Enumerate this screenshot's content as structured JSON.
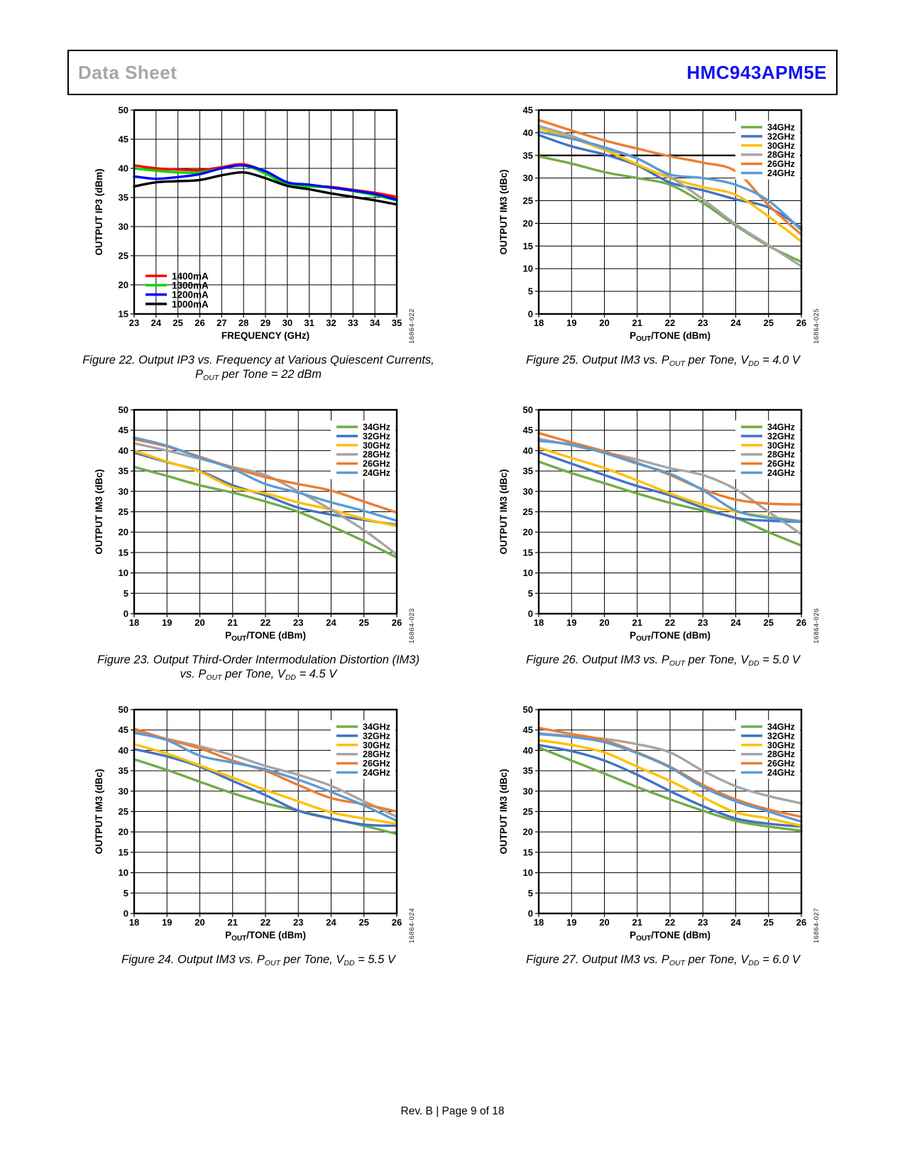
{
  "header": {
    "doc_type": "Data Sheet",
    "part_number": "HMC943APM5E"
  },
  "footer": {
    "text": "Rev. B | Page 9 of 18"
  },
  "colors": {
    "part_number_blue": "#1212f0",
    "doc_type_gray": "#a6a6a6",
    "series_green": "#70AD47",
    "series_blue": "#4472C4",
    "series_yellow": "#FFC000",
    "series_gray": "#A5A5A5",
    "series_orange": "#ED7D31",
    "series_lightblue": "#5B9BD5"
  },
  "chart_data": [
    {
      "figure": "Figure 22",
      "type": "line",
      "watermark": "16864-022",
      "ylabel": "OUTPUT IP3 (dBm)",
      "xlabel": "FREQUENCY (GHz)",
      "xlabel_parts": [
        {
          "t": "FREQUENCY (GHz)"
        }
      ],
      "xlim": [
        23,
        35
      ],
      "xstep": 1,
      "ylim": [
        15,
        50
      ],
      "ystep": 5,
      "grid": true,
      "legend_position": "bottom-left",
      "x": [
        23,
        24,
        25,
        26,
        27,
        28,
        29,
        30,
        31,
        32,
        33,
        34,
        35
      ],
      "series": [
        {
          "name": "1400mA",
          "color": "#ff0000",
          "values": [
            40.5,
            40.0,
            39.8,
            39.7,
            40.2,
            40.7,
            39.4,
            37.4,
            37.0,
            36.8,
            36.3,
            35.8,
            35.1
          ]
        },
        {
          "name": "1300mA",
          "color": "#00d500",
          "values": [
            40.0,
            39.6,
            39.3,
            39.3,
            40.0,
            40.5,
            39.1,
            37.2,
            36.9,
            36.7,
            36.1,
            35.4,
            34.5
          ]
        },
        {
          "name": "1200mA",
          "color": "#0000ff",
          "values": [
            38.6,
            38.2,
            38.5,
            39.0,
            40.0,
            40.5,
            39.5,
            37.6,
            37.2,
            36.7,
            36.2,
            35.6,
            34.6
          ]
        },
        {
          "name": "1000mA",
          "color": "#000000",
          "values": [
            36.9,
            37.6,
            37.8,
            38.0,
            38.8,
            39.3,
            38.3,
            37.0,
            36.4,
            35.7,
            35.1,
            34.5,
            33.8
          ]
        }
      ],
      "caption_lines": [
        [
          {
            "t": "Figure 22. Output IP3 vs. Frequency at Various Quiescent Currents,"
          }
        ],
        [
          {
            "t": "P"
          },
          {
            "t": "OUT",
            "sub": true
          },
          {
            "t": " per Tone = 22 dBm"
          }
        ]
      ]
    },
    {
      "figure": "Figure 25",
      "type": "line",
      "watermark": "16864-025",
      "ylabel": "OUTPUT IM3 (dBc)",
      "xlabel": "POUT/TONE (dBm)",
      "xlabel_parts": [
        {
          "t": "P"
        },
        {
          "t": "OUT",
          "sub": true
        },
        {
          "t": "/TONE (dBm)"
        }
      ],
      "xlim": [
        18,
        26
      ],
      "xstep": 1,
      "ylim": [
        0,
        45
      ],
      "ystep": 5,
      "grid": true,
      "ref_line_y": 35,
      "legend_position": "top-right",
      "x": [
        18,
        19,
        20,
        21,
        22,
        23,
        24,
        25,
        26
      ],
      "series": [
        {
          "name": "34GHz",
          "color": "#70AD47",
          "values": [
            34.8,
            33.2,
            31.3,
            30.0,
            28.5,
            24.5,
            19.5,
            15.0,
            11.5
          ]
        },
        {
          "name": "32GHz",
          "color": "#4472C4",
          "values": [
            39.5,
            37.0,
            35.2,
            32.8,
            29.0,
            27.3,
            25.3,
            23.5,
            19.0
          ]
        },
        {
          "name": "30GHz",
          "color": "#FFC000",
          "values": [
            41.0,
            38.8,
            36.2,
            33.0,
            30.0,
            28.0,
            26.3,
            21.5,
            16.0
          ]
        },
        {
          "name": "28GHz",
          "color": "#A5A5A5",
          "values": [
            41.5,
            39.3,
            36.5,
            34.3,
            30.3,
            25.3,
            19.8,
            15.2,
            10.5
          ]
        },
        {
          "name": "26GHz",
          "color": "#ED7D31",
          "values": [
            42.8,
            40.5,
            38.3,
            36.5,
            34.8,
            33.4,
            31.5,
            24.0,
            17.5
          ]
        },
        {
          "name": "24GHz",
          "color": "#5B9BD5",
          "values": [
            40.2,
            38.7,
            36.8,
            34.3,
            30.8,
            30.0,
            28.5,
            25.0,
            18.5
          ]
        }
      ],
      "caption_lines": [
        [
          {
            "t": "Figure 25. Output IM3 vs. P"
          },
          {
            "t": "OUT",
            "sub": true
          },
          {
            "t": " per Tone, V"
          },
          {
            "t": "DD",
            "sub": true
          },
          {
            "t": " = 4.0 V"
          }
        ]
      ]
    },
    {
      "figure": "Figure 23",
      "type": "line",
      "watermark": "16864-023",
      "ylabel": "OUTPUT IM3 (dBc)",
      "xlabel": "POUT/TONE (dBm)",
      "xlabel_parts": [
        {
          "t": "P"
        },
        {
          "t": "OUT",
          "sub": true
        },
        {
          "t": "/TONE (dBm)"
        }
      ],
      "xlim": [
        18,
        26
      ],
      "xstep": 1,
      "ylim": [
        0,
        50
      ],
      "ystep": 5,
      "grid": true,
      "legend_position": "top-right",
      "x": [
        18,
        19,
        20,
        21,
        22,
        23,
        24,
        25,
        26
      ],
      "series": [
        {
          "name": "34GHz",
          "color": "#70AD47",
          "values": [
            36.0,
            33.8,
            31.5,
            29.7,
            27.5,
            25.0,
            21.5,
            17.8,
            13.8
          ]
        },
        {
          "name": "32GHz",
          "color": "#4472C4",
          "values": [
            39.5,
            37.2,
            35.0,
            31.5,
            29.0,
            26.0,
            24.3,
            23.0,
            21.8
          ]
        },
        {
          "name": "30GHz",
          "color": "#FFC000",
          "values": [
            40.0,
            37.3,
            34.8,
            31.0,
            29.5,
            27.3,
            25.5,
            23.3,
            21.5
          ]
        },
        {
          "name": "28GHz",
          "color": "#A5A5A5",
          "values": [
            41.8,
            40.0,
            38.0,
            36.0,
            34.0,
            30.0,
            25.5,
            20.5,
            14.5
          ]
        },
        {
          "name": "26GHz",
          "color": "#ED7D31",
          "values": [
            42.8,
            41.0,
            38.5,
            35.8,
            33.5,
            31.8,
            30.2,
            27.5,
            24.8
          ]
        },
        {
          "name": "24GHz",
          "color": "#5B9BD5",
          "values": [
            43.2,
            41.2,
            38.3,
            35.5,
            31.8,
            29.7,
            27.3,
            25.2,
            22.8
          ]
        }
      ],
      "caption_lines": [
        [
          {
            "t": "Figure 23. Output Third-Order Intermodulation Distortion (IM3)"
          }
        ],
        [
          {
            "t": "vs. P"
          },
          {
            "t": "OUT",
            "sub": true
          },
          {
            "t": " per Tone, V"
          },
          {
            "t": "DD",
            "sub": true
          },
          {
            "t": " = 4.5 V"
          }
        ]
      ]
    },
    {
      "figure": "Figure 26",
      "type": "line",
      "watermark": "16864-026",
      "ylabel": "OUTPUT IM3 (dBc)",
      "xlabel": "POUT/TONE (dBm)",
      "xlabel_parts": [
        {
          "t": "P"
        },
        {
          "t": "OUT",
          "sub": true
        },
        {
          "t": "/TONE (dBm)"
        }
      ],
      "xlim": [
        18,
        26
      ],
      "xstep": 1,
      "ylim": [
        0,
        50
      ],
      "ystep": 5,
      "grid": true,
      "legend_position": "top-right",
      "x": [
        18,
        19,
        20,
        21,
        22,
        23,
        24,
        25,
        26
      ],
      "series": [
        {
          "name": "34GHz",
          "color": "#70AD47",
          "values": [
            37.3,
            34.5,
            32.0,
            29.5,
            27.2,
            25.3,
            23.5,
            20.0,
            16.7
          ]
        },
        {
          "name": "32GHz",
          "color": "#4472C4",
          "values": [
            39.6,
            36.8,
            34.0,
            31.3,
            29.0,
            26.0,
            23.5,
            22.8,
            22.6
          ]
        },
        {
          "name": "30GHz",
          "color": "#FFC000",
          "values": [
            40.7,
            38.2,
            35.7,
            32.7,
            29.5,
            26.8,
            25.0,
            23.8,
            22.7
          ]
        },
        {
          "name": "28GHz",
          "color": "#A5A5A5",
          "values": [
            42.9,
            41.3,
            39.6,
            37.8,
            35.7,
            34.0,
            30.5,
            25.0,
            19.5
          ]
        },
        {
          "name": "26GHz",
          "color": "#ED7D31",
          "values": [
            44.3,
            42.0,
            39.8,
            37.0,
            34.0,
            30.5,
            28.0,
            27.0,
            26.8
          ]
        },
        {
          "name": "24GHz",
          "color": "#5B9BD5",
          "values": [
            42.4,
            41.5,
            39.4,
            36.8,
            34.3,
            30.3,
            25.3,
            23.5,
            22.7
          ]
        }
      ],
      "caption_lines": [
        [
          {
            "t": "Figure 26. Output IM3 vs. P"
          },
          {
            "t": "OUT",
            "sub": true
          },
          {
            "t": " per Tone, V"
          },
          {
            "t": "DD",
            "sub": true
          },
          {
            "t": " = 5.0 V"
          }
        ]
      ]
    },
    {
      "figure": "Figure 24",
      "type": "line",
      "watermark": "16864-024",
      "ylabel": "OUTPUT IM3 (dBc)",
      "xlabel": "POUT/TONE (dBm)",
      "xlabel_parts": [
        {
          "t": "P"
        },
        {
          "t": "OUT",
          "sub": true
        },
        {
          "t": "/TONE (dBm)"
        }
      ],
      "xlim": [
        18,
        26
      ],
      "xstep": 1,
      "ylim": [
        0,
        50
      ],
      "ystep": 5,
      "grid": true,
      "legend_position": "top-right",
      "x": [
        18,
        19,
        20,
        21,
        22,
        23,
        24,
        25,
        26
      ],
      "series": [
        {
          "name": "34GHz",
          "color": "#70AD47",
          "values": [
            37.8,
            35.2,
            32.3,
            29.5,
            27.0,
            25.2,
            23.3,
            21.5,
            19.5
          ]
        },
        {
          "name": "32GHz",
          "color": "#4472C4",
          "values": [
            40.3,
            38.5,
            36.0,
            32.5,
            29.0,
            25.2,
            23.3,
            21.8,
            21.5
          ]
        },
        {
          "name": "30GHz",
          "color": "#FFC000",
          "values": [
            41.5,
            39.2,
            36.3,
            33.3,
            30.3,
            27.5,
            24.8,
            23.3,
            22.0
          ]
        },
        {
          "name": "28GHz",
          "color": "#A5A5A5",
          "values": [
            44.7,
            42.8,
            41.0,
            38.8,
            36.2,
            34.0,
            31.3,
            27.5,
            23.7
          ]
        },
        {
          "name": "26GHz",
          "color": "#ED7D31",
          "values": [
            45.3,
            42.7,
            40.5,
            37.5,
            35.0,
            31.5,
            28.3,
            26.8,
            25.0
          ]
        },
        {
          "name": "24GHz",
          "color": "#5B9BD5",
          "values": [
            44.3,
            42.5,
            38.7,
            37.0,
            35.3,
            32.8,
            29.8,
            26.5,
            22.7
          ]
        }
      ],
      "caption_lines": [
        [
          {
            "t": "Figure 24. Output IM3 vs. P"
          },
          {
            "t": "OUT",
            "sub": true
          },
          {
            "t": " per Tone, V"
          },
          {
            "t": "DD",
            "sub": true
          },
          {
            "t": " = 5.5 V"
          }
        ]
      ]
    },
    {
      "figure": "Figure 27",
      "type": "line",
      "watermark": "16864-027",
      "ylabel": "OUTPUT IM3 (dBc)",
      "xlabel": "POUT/TONE (dBm)",
      "xlabel_parts": [
        {
          "t": "P"
        },
        {
          "t": "OUT",
          "sub": true
        },
        {
          "t": "/TONE (dBm)"
        }
      ],
      "xlim": [
        18,
        26
      ],
      "xstep": 1,
      "ylim": [
        0,
        50
      ],
      "ystep": 5,
      "grid": true,
      "legend_position": "top-right",
      "x": [
        18,
        19,
        20,
        21,
        22,
        23,
        24,
        25,
        26
      ],
      "series": [
        {
          "name": "34GHz",
          "color": "#70AD47",
          "values": [
            40.7,
            37.5,
            34.3,
            31.0,
            28.0,
            25.2,
            22.7,
            21.3,
            20.3
          ]
        },
        {
          "name": "32GHz",
          "color": "#4472C4",
          "values": [
            41.3,
            39.8,
            37.5,
            34.0,
            30.0,
            26.3,
            23.3,
            22.0,
            21.3
          ]
        },
        {
          "name": "30GHz",
          "color": "#FFC000",
          "values": [
            42.5,
            41.3,
            39.5,
            36.0,
            32.5,
            28.5,
            24.8,
            23.3,
            21.5
          ]
        },
        {
          "name": "28GHz",
          "color": "#A5A5A5",
          "values": [
            44.2,
            43.5,
            42.8,
            41.5,
            39.5,
            35.0,
            31.2,
            28.8,
            27.0
          ]
        },
        {
          "name": "26GHz",
          "color": "#ED7D31",
          "values": [
            45.5,
            44.0,
            42.5,
            39.5,
            36.0,
            31.5,
            28.0,
            25.5,
            23.7
          ]
        },
        {
          "name": "24GHz",
          "color": "#5B9BD5",
          "values": [
            44.0,
            43.3,
            42.0,
            39.3,
            35.8,
            31.0,
            27.5,
            25.0,
            22.5
          ]
        }
      ],
      "caption_lines": [
        [
          {
            "t": "Figure 27. Output IM3 vs. P"
          },
          {
            "t": "OUT",
            "sub": true
          },
          {
            "t": " per Tone, V"
          },
          {
            "t": "DD",
            "sub": true
          },
          {
            "t": " = 6.0 V"
          }
        ]
      ]
    }
  ]
}
